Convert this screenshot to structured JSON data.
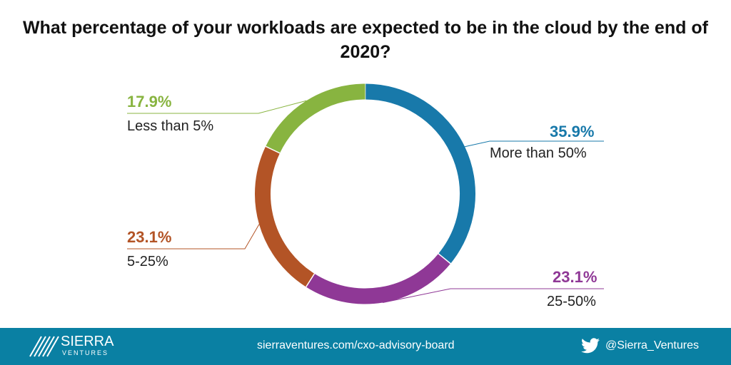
{
  "chart_data": {
    "type": "pie",
    "donut": true,
    "title": "What percentage of your workloads are expected to be in the cloud by the end of 2020?",
    "slices": [
      {
        "label": "More than 50%",
        "value": 35.9,
        "display": "35.9%",
        "color": "#1879aa"
      },
      {
        "label": "25-50%",
        "value": 23.1,
        "display": "23.1%",
        "color": "#8f3896"
      },
      {
        "label": "5-25%",
        "value": 23.1,
        "display": "23.1%",
        "color": "#b35426"
      },
      {
        "label": "Less than 5%",
        "value": 17.9,
        "display": "17.9%",
        "color": "#88b440"
      }
    ]
  },
  "footer": {
    "logo_main": "SIERRA",
    "logo_sub": "VENTURES",
    "url": "sierraventures.com/cxo-advisory-board",
    "twitter_handle": "@Sierra_Ventures",
    "icon": "twitter-icon"
  }
}
